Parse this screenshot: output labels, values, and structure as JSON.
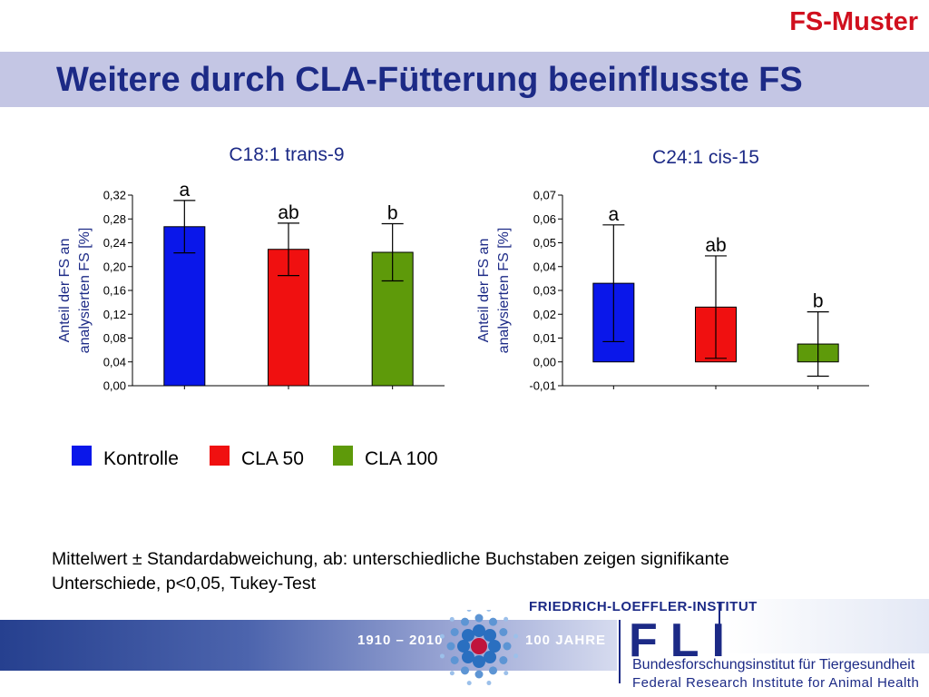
{
  "header": {
    "tag": "FS-Muster",
    "title": "Weitere durch CLA-Fütterung beeinflusste FS"
  },
  "colors": {
    "Kontrolle": "#0a17ea",
    "CLA 50": "#f01010",
    "CLA 100": "#5e9a0a"
  },
  "chart_data": [
    {
      "type": "bar",
      "title": "C18:1 trans-9",
      "ylabel": "Anteil der FS an analysierten FS [%]",
      "categories": [
        "Kontrolle",
        "CLA 50",
        "CLA 100"
      ],
      "values": [
        0.267,
        0.229,
        0.224
      ],
      "errors": [
        0.044,
        0.044,
        0.048
      ],
      "letters": [
        "a",
        "ab",
        "b"
      ],
      "ylim": [
        0,
        0.32
      ],
      "yticks": [
        "0,00",
        "0,04",
        "0,08",
        "0,12",
        "0,16",
        "0,20",
        "0,24",
        "0,28",
        "0,32"
      ],
      "grid": false
    },
    {
      "type": "bar",
      "title": "C24:1 cis-15",
      "ylabel": "Anteil der FS an analysierten FS [%]",
      "categories": [
        "Kontrolle",
        "CLA 50",
        "CLA 100"
      ],
      "values": [
        0.033,
        0.023,
        0.0075
      ],
      "errors": [
        0.0245,
        0.0215,
        0.0135
      ],
      "letters": [
        "a",
        "ab",
        "b"
      ],
      "ylim": [
        -0.01,
        0.07
      ],
      "yticks": [
        "-0,01",
        "0,00",
        "0,01",
        "0,02",
        "0,03",
        "0,04",
        "0,05",
        "0,06",
        "0,07"
      ],
      "grid": false
    }
  ],
  "legend": {
    "placement": "bottom-left",
    "items": [
      "Kontrolle",
      "CLA 50",
      "CLA 100"
    ]
  },
  "note": {
    "line1": "Mittelwert ± Standardabweichung, ab: unterschiedliche Buchstaben zeigen signifikante",
    "line2": "Unterschiede, p<0,05, Tukey-Test"
  },
  "footer": {
    "years": "1910 – 2010",
    "anniversary": "100 JAHRE",
    "institute": "FRIEDRICH-LOEFFLER-INSTITUT",
    "logo": "FLI",
    "name_de": "Bundesforschungsinstitut für Tiergesundheit",
    "name_en": "Federal Research Institute for Animal Health"
  }
}
